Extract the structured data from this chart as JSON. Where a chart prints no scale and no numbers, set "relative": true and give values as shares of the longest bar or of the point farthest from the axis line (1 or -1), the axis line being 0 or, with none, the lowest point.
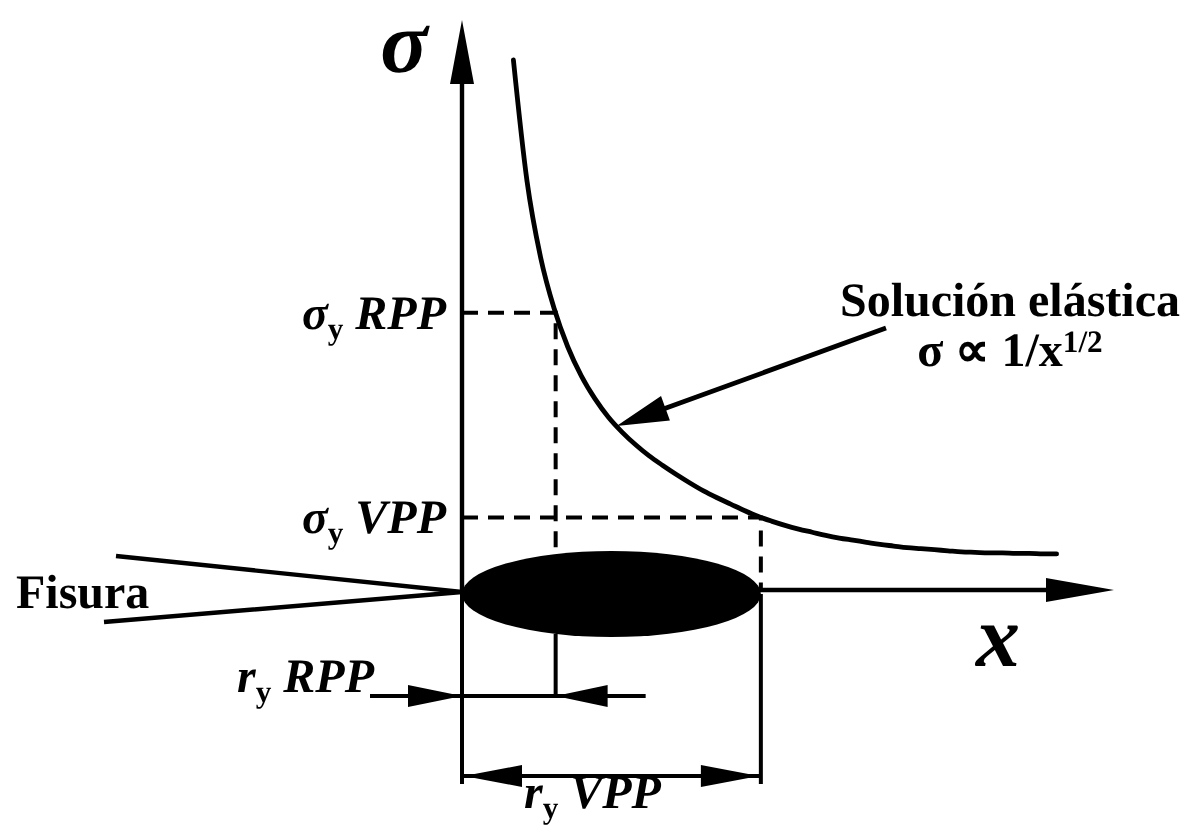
{
  "chart_data": {
    "type": "line",
    "relative": true,
    "xlabel": "x",
    "ylabel": "σ",
    "categories": [
      null,
      null,
      null,
      null,
      null,
      null,
      null,
      null,
      null,
      null,
      null,
      null,
      null,
      null,
      null,
      null,
      null,
      null,
      null,
      null,
      null,
      null,
      null,
      null,
      null,
      null,
      null,
      null,
      null,
      null,
      null,
      null,
      null,
      null,
      null,
      null,
      null,
      null,
      null,
      null,
      null
    ],
    "series": [
      {
        "color": "#000000",
        "values": [
          1.0,
          0.772,
          0.628,
          0.531,
          0.459,
          0.404,
          0.361,
          0.326,
          0.298,
          0.274,
          0.253,
          0.235,
          0.218,
          0.202,
          0.187,
          0.174,
          0.162,
          0.15,
          0.139,
          0.13,
          0.122,
          0.115,
          0.109,
          0.103,
          0.098,
          0.094,
          0.09,
          0.086,
          0.083,
          0.08,
          0.078,
          0.076,
          0.074,
          0.072,
          0.071,
          0.07,
          0.07,
          0.069,
          0.069,
          0.068,
          0.068
        ]
      }
    ],
    "line_style": "solid",
    "ref_lines": [
      {
        "axis": "y",
        "value": 0.523,
        "label": "σ$_{y}$ RPP",
        "color": "#000000",
        "line_style": "dashed"
      },
      {
        "axis": "y",
        "value": 0.137,
        "label": "σ$_{y}$ VPP",
        "color": "#000000",
        "line_style": "dashed"
      }
    ],
    "annotations": [
      "Solución elástica\nσ ∝ 1/x$^{1/2}$",
      "Fisura",
      "r$_{y}$ RPP",
      "r$_{y}$ VPP"
    ]
  }
}
